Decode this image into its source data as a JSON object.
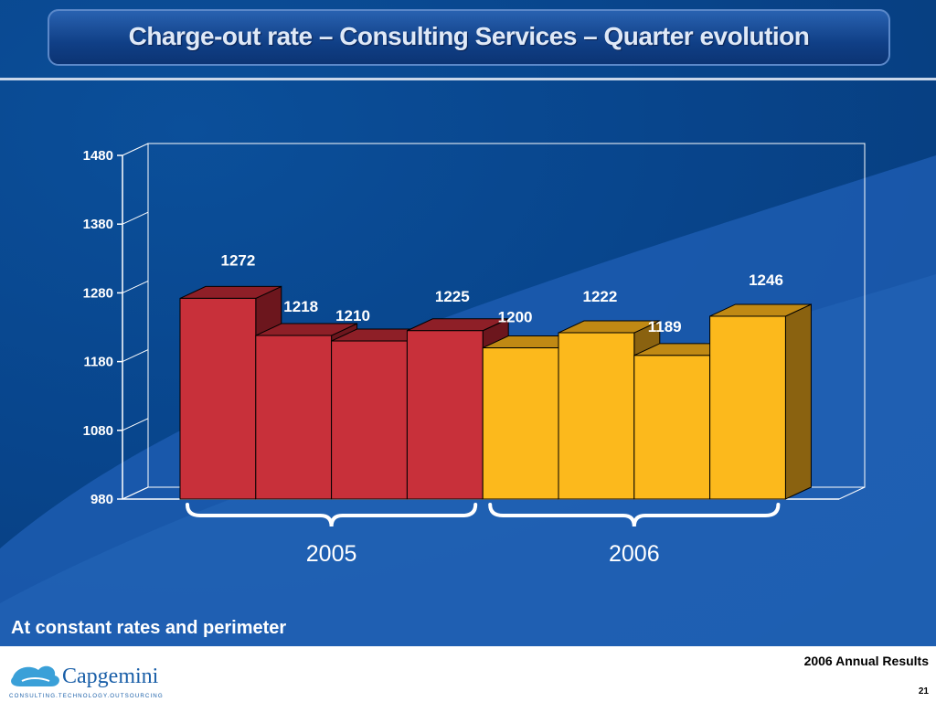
{
  "title": "Charge-out rate – Consulting Services – Quarter evolution",
  "note": "At constant rates and perimeter",
  "footer": {
    "report": "2006 Annual Results",
    "page": "21",
    "logo_text": "Capgemini",
    "logo_tagline": "CONSULTING.TECHNOLOGY.OUTSOURCING"
  },
  "colors": {
    "background": "#08458c",
    "bar_2005": "#c8303a",
    "bar_2006": "#fcb91c"
  },
  "chart_data": {
    "type": "bar",
    "ylim": [
      980,
      1480
    ],
    "yticks": [
      980,
      1080,
      1180,
      1280,
      1380,
      1480
    ],
    "values": [
      1272,
      1218,
      1210,
      1225,
      1200,
      1222,
      1189,
      1246
    ],
    "value_labels": [
      "1272",
      "1218",
      "1210",
      "1225",
      "1200",
      "1222",
      "1189",
      "1246"
    ],
    "groups": [
      {
        "label": "2005",
        "start": 0,
        "end": 3
      },
      {
        "label": "2006",
        "start": 4,
        "end": 7
      }
    ],
    "grid": false
  }
}
